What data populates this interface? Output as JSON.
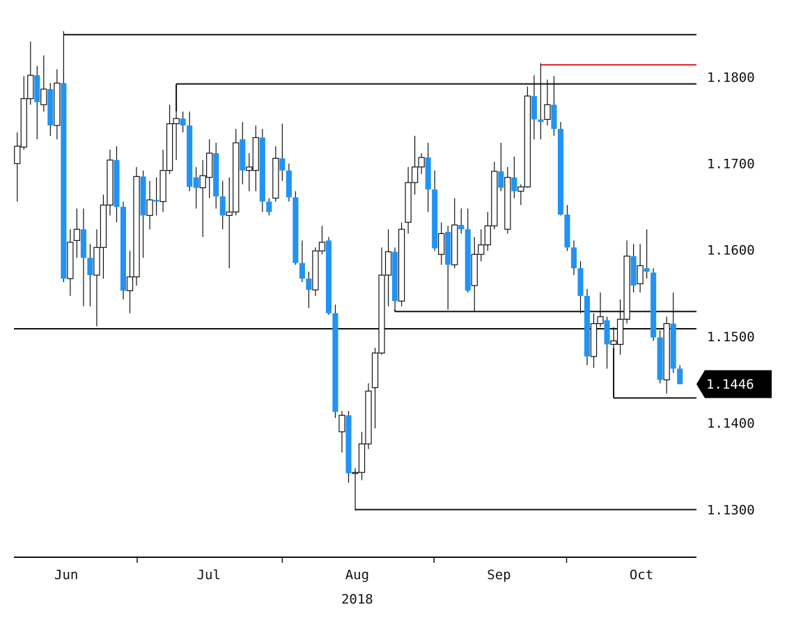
{
  "chart_data": {
    "type": "candlestick",
    "colors": {
      "up": "#ffffff",
      "down": "#2193f3",
      "outline": "#111111",
      "level": "#111111",
      "highlight": "#e02020"
    },
    "ylim": [
      1.1246,
      1.189
    ],
    "yticks": [
      {
        "value": 1.18,
        "label": "1.1800"
      },
      {
        "value": 1.17,
        "label": "1.1700"
      },
      {
        "value": 1.16,
        "label": "1.1600"
      },
      {
        "value": 1.15,
        "label": "1.1500"
      },
      {
        "value": 1.14,
        "label": "1.1400"
      },
      {
        "value": 1.13,
        "label": "1.1300"
      }
    ],
    "xlim": [
      -0.5,
      102.5
    ],
    "xticks": [
      {
        "value": 7.4,
        "label": "Jun"
      },
      {
        "value": 28.9,
        "label": "Jul"
      },
      {
        "value": 51.3,
        "label": "Aug"
      },
      {
        "value": 72.7,
        "label": "Sep"
      },
      {
        "value": 94.2,
        "label": "Oct"
      }
    ],
    "x_separators": [
      18.1,
      40,
      62.9,
      82.9
    ],
    "year_label": "2018",
    "last_price": 1.1446,
    "levels": [
      {
        "value": 1.185,
        "start": 7,
        "highlight": false
      },
      {
        "value": 1.1815,
        "start": 79,
        "highlight": true
      },
      {
        "value": 1.1793,
        "start": 24,
        "highlight": false
      },
      {
        "value": 1.153,
        "start": 57,
        "highlight": false
      },
      {
        "value": 1.151,
        "start": -0.5,
        "highlight": false
      },
      {
        "value": 1.143,
        "start": 90,
        "highlight": false
      },
      {
        "value": 1.1301,
        "start": 51,
        "highlight": false
      }
    ],
    "candles": [
      [
        1.1701,
        1.1737,
        1.1657,
        1.1721
      ],
      [
        1.172,
        1.1802,
        1.1717,
        1.1776
      ],
      [
        1.1776,
        1.1842,
        1.1769,
        1.1803
      ],
      [
        1.1803,
        1.1814,
        1.1729,
        1.1772
      ],
      [
        1.1769,
        1.1826,
        1.1761,
        1.1787
      ],
      [
        1.1787,
        1.1794,
        1.1733,
        1.1745
      ],
      [
        1.1745,
        1.181,
        1.1729,
        1.1794
      ],
      [
        1.1794,
        1.1854,
        1.1564,
        1.1568
      ],
      [
        1.1568,
        1.1625,
        1.1548,
        1.161
      ],
      [
        1.1612,
        1.1649,
        1.1592,
        1.1625
      ],
      [
        1.1625,
        1.1649,
        1.1536,
        1.1592
      ],
      [
        1.1592,
        1.1608,
        1.1536,
        1.1572
      ],
      [
        1.1572,
        1.1625,
        1.1513,
        1.1604
      ],
      [
        1.1604,
        1.1665,
        1.1568,
        1.1653
      ],
      [
        1.1653,
        1.1717,
        1.1641,
        1.1705
      ],
      [
        1.1705,
        1.1721,
        1.1633,
        1.1651
      ],
      [
        1.1651,
        1.1657,
        1.1544,
        1.1554
      ],
      [
        1.1554,
        1.16,
        1.1528,
        1.157
      ],
      [
        1.157,
        1.1697,
        1.156,
        1.1686
      ],
      [
        1.1686,
        1.1693,
        1.1592,
        1.1641
      ],
      [
        1.1641,
        1.1681,
        1.1625,
        1.1659
      ],
      [
        1.1659,
        1.1685,
        1.1641,
        1.1657
      ],
      [
        1.1657,
        1.1717,
        1.1645,
        1.1693
      ],
      [
        1.1693,
        1.1769,
        1.1689,
        1.1747
      ],
      [
        1.1747,
        1.1761,
        1.1705,
        1.1753
      ],
      [
        1.1753,
        1.1761,
        1.1737,
        1.1745
      ],
      [
        1.1745,
        1.1761,
        1.1669,
        1.1674
      ],
      [
        1.1685,
        1.1697,
        1.1649,
        1.1673
      ],
      [
        1.1673,
        1.1705,
        1.1616,
        1.1687
      ],
      [
        1.1685,
        1.1729,
        1.1661,
        1.1713
      ],
      [
        1.1713,
        1.1725,
        1.1649,
        1.1663
      ],
      [
        1.1663,
        1.1681,
        1.1625,
        1.1641
      ],
      [
        1.1641,
        1.1685,
        1.158,
        1.1645
      ],
      [
        1.1645,
        1.1741,
        1.1641,
        1.1725
      ],
      [
        1.1729,
        1.1749,
        1.1677,
        1.1693
      ],
      [
        1.1693,
        1.1713,
        1.1669,
        1.1697
      ],
      [
        1.1693,
        1.1745,
        1.1669,
        1.1731
      ],
      [
        1.1731,
        1.1741,
        1.1645,
        1.1657
      ],
      [
        1.1657,
        1.1661,
        1.1641,
        1.1645
      ],
      [
        1.1661,
        1.1721,
        1.1657,
        1.1707
      ],
      [
        1.1707,
        1.1747,
        1.1681,
        1.1693
      ],
      [
        1.1693,
        1.1701,
        1.1657,
        1.1662
      ],
      [
        1.1662,
        1.1669,
        1.1584,
        1.1586
      ],
      [
        1.1586,
        1.1612,
        1.1564,
        1.1568
      ],
      [
        1.1568,
        1.1576,
        1.1534,
        1.1555
      ],
      [
        1.1555,
        1.1604,
        1.1548,
        1.16
      ],
      [
        1.16,
        1.1629,
        1.1596,
        1.161
      ],
      [
        1.1612,
        1.1616,
        1.1526,
        1.1528
      ],
      [
        1.1528,
        1.1538,
        1.1407,
        1.1414
      ],
      [
        1.1391,
        1.1415,
        1.1367,
        1.141
      ],
      [
        1.141,
        1.1415,
        1.1332,
        1.1343
      ],
      [
        1.1343,
        1.1349,
        1.13,
        1.1344
      ],
      [
        1.1344,
        1.1391,
        1.1335,
        1.1377
      ],
      [
        1.1377,
        1.1447,
        1.1371,
        1.1438
      ],
      [
        1.1442,
        1.1488,
        1.1395,
        1.1482
      ],
      [
        1.1482,
        1.1604,
        1.148,
        1.1572
      ],
      [
        1.1572,
        1.1625,
        1.1536,
        1.1599
      ],
      [
        1.1599,
        1.1604,
        1.1532,
        1.1542
      ],
      [
        1.1542,
        1.1633,
        1.1536,
        1.1625
      ],
      [
        1.1633,
        1.1697,
        1.162,
        1.1679
      ],
      [
        1.1679,
        1.1733,
        1.1665,
        1.1697
      ],
      [
        1.1697,
        1.1713,
        1.1689,
        1.1708
      ],
      [
        1.1708,
        1.1725,
        1.1645,
        1.1671
      ],
      [
        1.1671,
        1.1693,
        1.16,
        1.1603
      ],
      [
        1.1596,
        1.1633,
        1.1584,
        1.162
      ],
      [
        1.1622,
        1.1629,
        1.1532,
        1.1584
      ],
      [
        1.1584,
        1.1661,
        1.158,
        1.163
      ],
      [
        1.163,
        1.1649,
        1.162,
        1.1625
      ],
      [
        1.1625,
        1.1649,
        1.1552,
        1.1554
      ],
      [
        1.156,
        1.1616,
        1.153,
        1.1596
      ],
      [
        1.1596,
        1.1625,
        1.1588,
        1.1607
      ],
      [
        1.1607,
        1.1645,
        1.16,
        1.1629
      ],
      [
        1.1629,
        1.1703,
        1.1625,
        1.1692
      ],
      [
        1.1692,
        1.1725,
        1.1669,
        1.1673
      ],
      [
        1.1625,
        1.1697,
        1.162,
        1.1685
      ],
      [
        1.1685,
        1.1709,
        1.1661,
        1.1669
      ],
      [
        1.1669,
        1.1677,
        1.1653,
        1.1674
      ],
      [
        1.1674,
        1.179,
        1.1673,
        1.1779
      ],
      [
        1.1779,
        1.1803,
        1.1729,
        1.1752
      ],
      [
        1.1752,
        1.1817,
        1.1729,
        1.1749
      ],
      [
        1.1752,
        1.1798,
        1.1745,
        1.1769
      ],
      [
        1.1769,
        1.1802,
        1.1733,
        1.1741
      ],
      [
        1.1741,
        1.1749,
        1.1641,
        1.1642
      ],
      [
        1.1642,
        1.1653,
        1.16,
        1.1604
      ],
      [
        1.1604,
        1.1612,
        1.1572,
        1.158
      ],
      [
        1.158,
        1.1588,
        1.1528,
        1.1548
      ],
      [
        1.1548,
        1.1556,
        1.1468,
        1.1478
      ],
      [
        1.1478,
        1.1528,
        1.1465,
        1.1516
      ],
      [
        1.1516,
        1.1552,
        1.1512,
        1.1524
      ],
      [
        1.152,
        1.1524,
        1.1464,
        1.1492
      ],
      [
        1.1492,
        1.1512,
        1.1488,
        1.1496
      ],
      [
        1.1492,
        1.1544,
        1.148,
        1.1521
      ],
      [
        1.1521,
        1.1612,
        1.1516,
        1.1594
      ],
      [
        1.1594,
        1.1608,
        1.1552,
        1.156
      ],
      [
        1.1562,
        1.1608,
        1.1552,
        1.1583
      ],
      [
        1.158,
        1.1625,
        1.1568,
        1.1576
      ],
      [
        1.1575,
        1.158,
        1.1496,
        1.15
      ],
      [
        1.15,
        1.1508,
        1.1447,
        1.1451
      ],
      [
        1.1451,
        1.1524,
        1.1435,
        1.1516
      ],
      [
        1.1516,
        1.1552,
        1.1459,
        1.1464
      ],
      [
        1.1464,
        1.1468,
        1.1446,
        1.1446
      ]
    ]
  }
}
